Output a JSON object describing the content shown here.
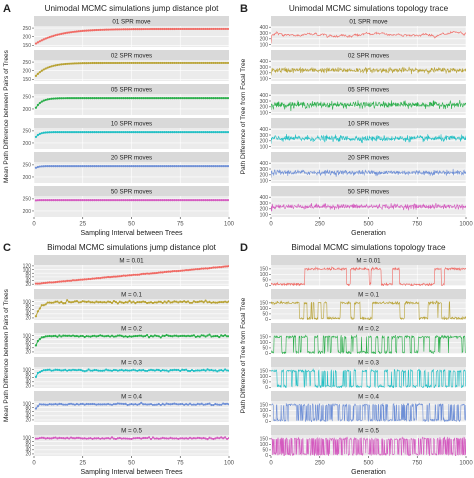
{
  "colors": {
    "s1": "#F06A64",
    "s2": "#B8A234",
    "s3": "#2AAE4A",
    "s4": "#21BFC4",
    "s5": "#6E8FD6",
    "s6": "#D45ABF",
    "strip_bg": "#D9D9D9",
    "panel_bg": "#EBEBEB",
    "grid": "#FFFFFF",
    "text": "#222222",
    "tick_text": "#4D4D4D"
  },
  "chart_data": [
    {
      "panel_letter": "A",
      "type": "scatter",
      "title": "Unimodal MCMC simulations jump distance plot",
      "xlabel": "Sampling Interval between Trees",
      "ylabel": "Mean Path Difference between Pairs of Trees",
      "xlim": [
        0,
        100
      ],
      "x_ticks": [
        0,
        25,
        50,
        75,
        100
      ],
      "grid": true,
      "facets": [
        {
          "label": "01 SPR move",
          "y_ticks": [
            150,
            200,
            250
          ],
          "ylim": [
            140,
            262
          ],
          "curve": "saturating",
          "y_start": 160,
          "y_end": 245,
          "rate": 12,
          "noise": 0
        },
        {
          "label": "02 SPR moves",
          "y_ticks": [
            150,
            200,
            250
          ],
          "ylim": [
            140,
            262
          ],
          "curve": "saturating",
          "y_start": 170,
          "y_end": 245,
          "rate": 6,
          "noise": 0
        },
        {
          "label": "05 SPR moves",
          "y_ticks": [
            200,
            250
          ],
          "ylim": [
            175,
            262
          ],
          "curve": "saturating",
          "y_start": 205,
          "y_end": 245,
          "rate": 3,
          "noise": 0
        },
        {
          "label": "10 SPR moves",
          "y_ticks": [
            200,
            250
          ],
          "ylim": [
            175,
            262
          ],
          "curve": "saturating",
          "y_start": 225,
          "y_end": 245,
          "rate": 2,
          "noise": 0
        },
        {
          "label": "20 SPR moves",
          "y_ticks": [
            200,
            250
          ],
          "ylim": [
            175,
            262
          ],
          "curve": "saturating",
          "y_start": 238,
          "y_end": 245,
          "rate": 1.5,
          "noise": 0
        },
        {
          "label": "50 SPR moves",
          "y_ticks": [
            200,
            250
          ],
          "ylim": [
            175,
            262
          ],
          "curve": "saturating",
          "y_start": 244,
          "y_end": 245,
          "rate": 1,
          "noise": 0
        }
      ]
    },
    {
      "panel_letter": "B",
      "type": "line",
      "title": "Unimodal MCMC simulations topology trace",
      "xlabel": "Generation",
      "ylabel": "Path Difference of Tree from Focal Tree",
      "xlim": [
        0,
        1000
      ],
      "x_ticks": [
        0,
        250,
        500,
        750,
        1000
      ],
      "grid": true,
      "facets": [
        {
          "label": "01 SPR move",
          "y_ticks": [
            100,
            200,
            300,
            400
          ],
          "ylim": [
            60,
            420
          ],
          "trace": "wander",
          "mean": 270,
          "amp": 20,
          "spike": 0
        },
        {
          "label": "02 SPR moves",
          "y_ticks": [
            100,
            200,
            300,
            400
          ],
          "ylim": [
            60,
            420
          ],
          "trace": "noise",
          "mean": 245,
          "amp": 22,
          "spike": 0
        },
        {
          "label": "05 SPR moves",
          "y_ticks": [
            100,
            200,
            300,
            400
          ],
          "ylim": [
            60,
            420
          ],
          "trace": "noise",
          "mean": 235,
          "amp": 28,
          "spike": 0
        },
        {
          "label": "10 SPR moves",
          "y_ticks": [
            100,
            200,
            300,
            400
          ],
          "ylim": [
            60,
            420
          ],
          "trace": "noise",
          "mean": 240,
          "amp": 26,
          "spike": 0
        },
        {
          "label": "20 SPR moves",
          "y_ticks": [
            100,
            200,
            300,
            400
          ],
          "ylim": [
            60,
            420
          ],
          "trace": "noise",
          "mean": 240,
          "amp": 22,
          "spike": 0
        },
        {
          "label": "50 SPR moves",
          "y_ticks": [
            100,
            200,
            300,
            400
          ],
          "ylim": [
            60,
            420
          ],
          "trace": "noise",
          "mean": 240,
          "amp": 22,
          "spike": 0
        }
      ]
    },
    {
      "panel_letter": "C",
      "type": "scatter",
      "title": "Bimodal MCMC simulations jump distance plot",
      "xlabel": "Sampling Interval between Trees",
      "ylabel": "Mean Path Difference between Pairs of Trees",
      "xlim": [
        0,
        100
      ],
      "x_ticks": [
        0,
        25,
        50,
        75,
        100
      ],
      "grid": true,
      "facets": [
        {
          "label": "M = 0.01",
          "y_ticks": [
            20,
            40,
            60,
            80,
            100,
            120
          ],
          "ylim": [
            10,
            125
          ],
          "curve": "linear",
          "y_start": 22,
          "y_end": 118,
          "rate": 0,
          "noise": 0.6
        },
        {
          "label": "M = 0.1",
          "y_ticks": [
            20,
            40,
            60,
            80,
            100
          ],
          "ylim": [
            10,
            112
          ],
          "curve": "saturating",
          "y_start": 30,
          "y_end": 97,
          "rate": 2.5,
          "noise": 2.5
        },
        {
          "label": "M = 0.2",
          "y_ticks": [
            20,
            40,
            60,
            80,
            100
          ],
          "ylim": [
            10,
            112
          ],
          "curve": "saturating",
          "y_start": 50,
          "y_end": 97,
          "rate": 1.5,
          "noise": 2.2
        },
        {
          "label": "M = 0.3",
          "y_ticks": [
            20,
            40,
            60,
            80,
            100
          ],
          "ylim": [
            10,
            112
          ],
          "curve": "saturating",
          "y_start": 65,
          "y_end": 96,
          "rate": 1.2,
          "noise": 2.2
        },
        {
          "label": "M = 0.4",
          "y_ticks": [
            20,
            40,
            60,
            80,
            100
          ],
          "ylim": [
            10,
            112
          ],
          "curve": "saturating",
          "y_start": 80,
          "y_end": 96,
          "rate": 1,
          "noise": 2.0
        },
        {
          "label": "M = 0.5",
          "y_ticks": [
            20,
            40,
            60,
            80,
            100
          ],
          "ylim": [
            10,
            112
          ],
          "curve": "saturating",
          "y_start": 92,
          "y_end": 96,
          "rate": 1,
          "noise": 1.8
        }
      ]
    },
    {
      "panel_letter": "D",
      "type": "line",
      "title": "Bimodal MCMC simulations topology trace",
      "xlabel": "Generation",
      "ylabel": "Path Difference of Tree from Focal Tree",
      "xlim": [
        0,
        1000
      ],
      "x_ticks": [
        0,
        250,
        500,
        750,
        1000
      ],
      "grid": true,
      "facets": [
        {
          "label": "M = 0.01",
          "y_ticks": [
            0,
            50,
            100,
            150
          ],
          "ylim": [
            -5,
            185
          ],
          "trace": "blocks",
          "low": 10,
          "high": 150,
          "switch_p": 0.012,
          "noise": 6
        },
        {
          "label": "M = 0.1",
          "y_ticks": [
            0,
            50,
            100,
            150
          ],
          "ylim": [
            -5,
            185
          ],
          "trace": "blocks",
          "low": 10,
          "high": 150,
          "switch_p": 0.05,
          "noise": 6
        },
        {
          "label": "M = 0.2",
          "y_ticks": [
            0,
            50,
            100,
            150
          ],
          "ylim": [
            -5,
            185
          ],
          "trace": "blocks",
          "low": 10,
          "high": 150,
          "switch_p": 0.12,
          "noise": 6
        },
        {
          "label": "M = 0.3",
          "y_ticks": [
            0,
            50,
            100,
            150
          ],
          "ylim": [
            -5,
            185
          ],
          "trace": "blocks",
          "low": 10,
          "high": 150,
          "switch_p": 0.2,
          "noise": 6
        },
        {
          "label": "M = 0.4",
          "y_ticks": [
            0,
            50,
            100,
            150
          ],
          "ylim": [
            -5,
            185
          ],
          "trace": "blocks",
          "low": 10,
          "high": 150,
          "switch_p": 0.3,
          "noise": 6
        },
        {
          "label": "M = 0.5",
          "y_ticks": [
            0,
            50,
            100,
            150
          ],
          "ylim": [
            -5,
            185
          ],
          "trace": "blocks",
          "low": 10,
          "high": 150,
          "switch_p": 0.45,
          "noise": 6
        }
      ]
    }
  ]
}
